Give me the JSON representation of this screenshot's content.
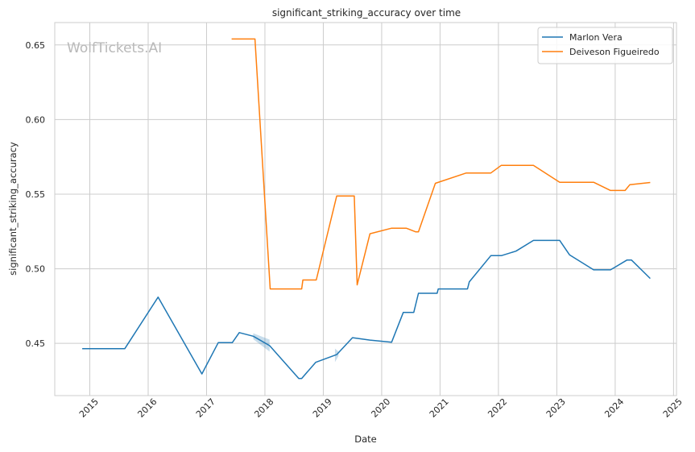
{
  "chart_data": {
    "type": "line",
    "title": "significant_striking_accuracy over time",
    "xlabel": "Date",
    "ylabel": "significant_striking_accuracy",
    "watermark": "WolfTickets.AI",
    "xlim": [
      2014.4,
      2025.05
    ],
    "ylim": [
      0.415,
      0.665
    ],
    "x_ticks": [
      2015,
      2016,
      2017,
      2018,
      2019,
      2020,
      2021,
      2022,
      2023,
      2024,
      2025
    ],
    "x_tick_labels": [
      "2015",
      "2016",
      "2017",
      "2018",
      "2019",
      "2020",
      "2021",
      "2022",
      "2023",
      "2024",
      "2025"
    ],
    "y_ticks": [
      0.45,
      0.5,
      0.55,
      0.6,
      0.65
    ],
    "y_tick_labels": [
      "0.45",
      "0.50",
      "0.55",
      "0.60",
      "0.65"
    ],
    "grid": true,
    "legend_position": "top-right",
    "series": [
      {
        "name": "Marlon Vera",
        "color": "#1f77b4",
        "points": [
          [
            2014.87,
            0.4465
          ],
          [
            2015.6,
            0.4465
          ],
          [
            2016.17,
            0.481
          ],
          [
            2016.92,
            0.4295
          ],
          [
            2017.2,
            0.4505
          ],
          [
            2017.44,
            0.4505
          ],
          [
            2017.56,
            0.4572
          ],
          [
            2017.8,
            0.4548
          ],
          [
            2018.08,
            0.4485
          ],
          [
            2018.58,
            0.4265
          ],
          [
            2018.63,
            0.4265
          ],
          [
            2018.87,
            0.4373
          ],
          [
            2019.23,
            0.4425
          ],
          [
            2019.5,
            0.4538
          ],
          [
            2019.8,
            0.4522
          ],
          [
            2020.17,
            0.4508
          ],
          [
            2020.37,
            0.4708
          ],
          [
            2020.55,
            0.4708
          ],
          [
            2020.63,
            0.4836
          ],
          [
            2020.95,
            0.4836
          ],
          [
            2020.97,
            0.4865
          ],
          [
            2021.47,
            0.4865
          ],
          [
            2021.5,
            0.4912
          ],
          [
            2021.87,
            0.5088
          ],
          [
            2022.05,
            0.5088
          ],
          [
            2022.3,
            0.5118
          ],
          [
            2022.6,
            0.519
          ],
          [
            2023.05,
            0.519
          ],
          [
            2023.22,
            0.5093
          ],
          [
            2023.63,
            0.4993
          ],
          [
            2023.92,
            0.4993
          ],
          [
            2024.2,
            0.5058
          ],
          [
            2024.28,
            0.5058
          ],
          [
            2024.6,
            0.4935
          ]
        ],
        "bands": [
          {
            "x": [
              2017.8,
              2018.08
            ],
            "lower": [
              0.4528,
              0.4445
            ],
            "upper": [
              0.4568,
              0.4525
            ]
          },
          {
            "x": [
              2019.2,
              2019.26
            ],
            "lower": [
              0.4375,
              0.4415
            ],
            "upper": [
              0.4465,
              0.4445
            ]
          }
        ]
      },
      {
        "name": "Deiveson Figueiredo",
        "color": "#ff7f0e",
        "points": [
          [
            2017.43,
            0.654
          ],
          [
            2017.83,
            0.654
          ],
          [
            2018.09,
            0.4865
          ],
          [
            2018.63,
            0.4865
          ],
          [
            2018.65,
            0.4925
          ],
          [
            2018.88,
            0.4925
          ],
          [
            2019.23,
            0.5488
          ],
          [
            2019.53,
            0.5488
          ],
          [
            2019.58,
            0.4892
          ],
          [
            2019.8,
            0.5235
          ],
          [
            2020.17,
            0.5272
          ],
          [
            2020.42,
            0.5272
          ],
          [
            2020.58,
            0.5248
          ],
          [
            2020.63,
            0.5248
          ],
          [
            2020.92,
            0.5573
          ],
          [
            2021.45,
            0.5642
          ],
          [
            2021.87,
            0.5642
          ],
          [
            2022.05,
            0.5693
          ],
          [
            2022.6,
            0.5693
          ],
          [
            2023.05,
            0.558
          ],
          [
            2023.63,
            0.558
          ],
          [
            2023.92,
            0.5525
          ],
          [
            2024.17,
            0.5525
          ],
          [
            2024.25,
            0.5563
          ],
          [
            2024.6,
            0.5578
          ]
        ]
      }
    ]
  }
}
